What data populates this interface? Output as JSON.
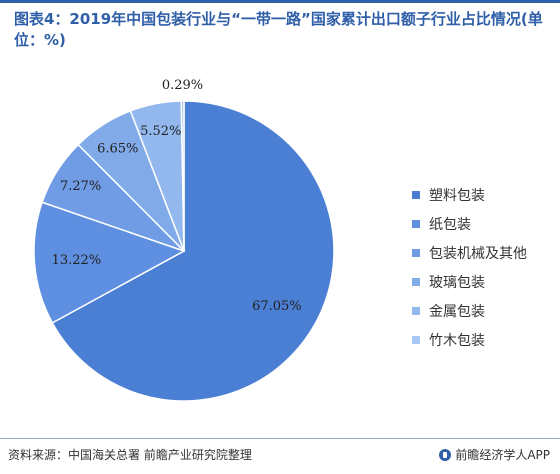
{
  "title": "图表4：2019年中国包装行业与“一带一路”国家累计出口额子行业占比情况(单位：%)",
  "source": "资料来源：中国海关总署 前瞻产业研究院整理",
  "brand": "前瞻经济学人APP",
  "colors": {
    "accent": "#2f5fa8",
    "slices": [
      "#4a7fd4",
      "#5e8fe0",
      "#6f9ce5",
      "#81aae9",
      "#93b8ee",
      "#a8c7f2"
    ]
  },
  "chart_data": {
    "type": "pie",
    "title": "图表4：2019年中国包装行业与“一带一路”国家累计出口额子行业占比情况(单位：%)",
    "categories": [
      "塑料包装",
      "纸包装",
      "包装机械及其他",
      "玻璃包装",
      "金属包装",
      "竹木包装"
    ],
    "values": [
      67.05,
      13.22,
      7.27,
      6.65,
      5.52,
      0.29
    ],
    "labels": [
      "67.05%",
      "13.22%",
      "7.27%",
      "6.65%",
      "5.52%",
      "0.29%"
    ],
    "legend_position": "right",
    "start_angle": "top",
    "direction": "clockwise"
  }
}
